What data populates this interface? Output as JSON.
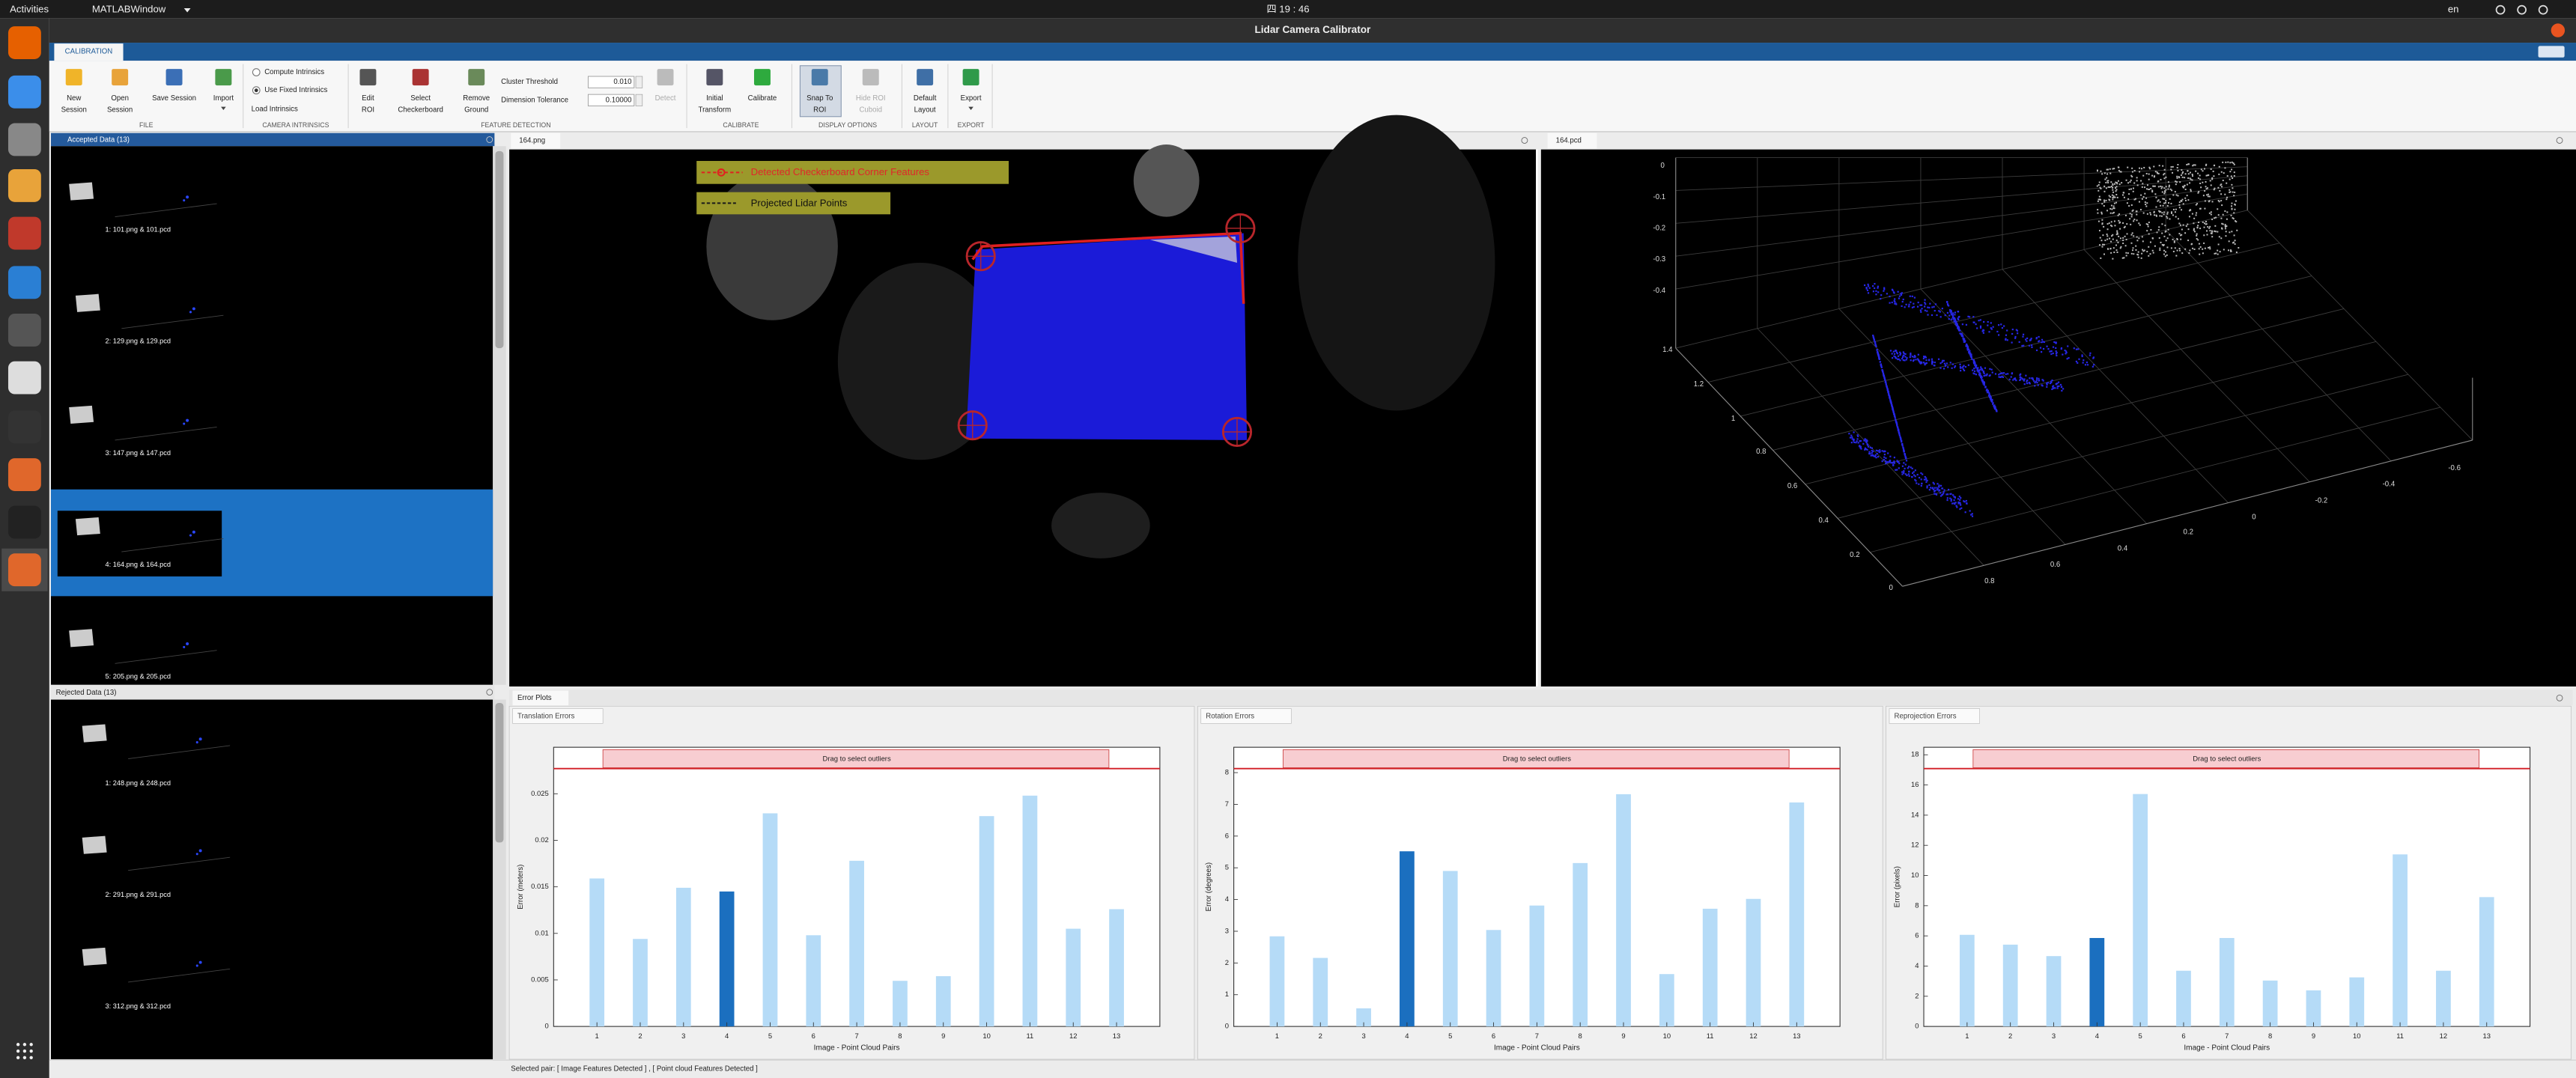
{
  "top_bar": {
    "activities": "Activities",
    "app": "MATLABWindow",
    "clock": "四 19 : 46",
    "language": "en"
  },
  "window_title": "Lidar Camera Calibrator",
  "toolstrip": {
    "tab": "CALIBRATION",
    "buttons": [
      [
        "New",
        "Session"
      ],
      [
        "Open",
        "Session"
      ],
      [
        "Save Session"
      ],
      [
        "Import"
      ],
      [
        "Edit",
        "ROI"
      ],
      [
        "Select",
        "Checkerboard"
      ],
      [
        "Remove",
        "Ground"
      ],
      [
        "Detect"
      ],
      [
        "Initial",
        "Transform"
      ],
      [
        "Calibrate"
      ],
      [
        "Snap To",
        "ROI"
      ],
      [
        "Hide ROI",
        "Cuboid"
      ],
      [
        "Default",
        "Layout"
      ],
      [
        "Export"
      ]
    ],
    "radios": [
      "Compute Intrinsics",
      "Use Fixed Intrinsics"
    ],
    "load_intrinsics": "Load Intrinsics",
    "fields": [
      {
        "label": "Cluster Threshold",
        "value": "0.010"
      },
      {
        "label": "Dimension Tolerance",
        "value": "0.10000"
      }
    ],
    "sections": [
      "FILE",
      "CAMERA INTRINSICS",
      "FEATURE DETECTION",
      "CALIBRATE",
      "DISPLAY OPTIONS",
      "LAYOUT",
      "EXPORT"
    ]
  },
  "accepted": {
    "title": "Accepted Data (13)",
    "items": [
      "1: 101.png & 101.pcd",
      "2: 129.png & 129.pcd",
      "3: 147.png & 147.pcd",
      "4: 164.png & 164.pcd",
      "5: 205.png & 205.pcd"
    ]
  },
  "rejected": {
    "title": "Rejected Data (13)",
    "items": [
      "1: 248.png & 248.pcd",
      "2: 291.png & 291.pcd",
      "3: 312.png & 312.pcd"
    ]
  },
  "image_view": {
    "tab": "164.png",
    "legend": [
      "Detected Checkerboard Corner Features",
      "Projected Lidar Points"
    ]
  },
  "pointcloud_view": {
    "tab": "164.pcd",
    "z_ticks": [
      0,
      -0.1,
      -0.2,
      -0.3,
      -0.4
    ],
    "y_ticks": [
      1.4,
      1.2,
      1,
      0.8,
      0.6,
      0.4,
      0.2,
      0
    ],
    "x_ticks": [
      0.8,
      0.6,
      0.4,
      0.2,
      0,
      -0.2,
      -0.4,
      -0.6
    ]
  },
  "error_plots": {
    "title": "Error Plots"
  },
  "status": "Selected pair: [ Image Features Detected ] , [ Point cloud Features Detected ]",
  "chart_data": [
    {
      "type": "bar",
      "tab": "Translation Errors",
      "banner": "Drag to select outliers",
      "ylabel": "Error (meters)",
      "xlabel": "Image - Point Cloud Pairs",
      "categories": [
        1,
        2,
        3,
        4,
        5,
        6,
        7,
        8,
        9,
        10,
        11,
        12,
        13
      ],
      "xlim": [
        0,
        14
      ],
      "ylim": [
        0,
        0.03
      ],
      "yticks": [
        0,
        0.005,
        0.01,
        0.015,
        0.02,
        0.025
      ],
      "values": [
        0.0159,
        0.0094,
        0.0149,
        0.0145,
        0.0229,
        0.0098,
        0.0178,
        0.0049,
        0.0054,
        0.0226,
        0.0248,
        0.0105,
        0.0126
      ],
      "colors": [
        "#b5dbf7",
        "#b5dbf7",
        "#b5dbf7",
        "#1b6fbf",
        "#b5dbf7",
        "#b5dbf7",
        "#b5dbf7",
        "#b5dbf7",
        "#b5dbf7",
        "#b5dbf7",
        "#b5dbf7",
        "#b5dbf7",
        "#b5dbf7"
      ]
    },
    {
      "type": "bar",
      "tab": "Rotation Errors",
      "banner": "Drag to select outliers",
      "ylabel": "Error (degrees)",
      "xlabel": "Image - Point Cloud Pairs",
      "categories": [
        1,
        2,
        3,
        4,
        5,
        6,
        7,
        8,
        9,
        10,
        11,
        12,
        13
      ],
      "xlim": [
        0,
        14
      ],
      "ylim": [
        0,
        8.8
      ],
      "yticks": [
        0,
        1,
        2,
        3,
        4,
        5,
        6,
        7,
        8
      ],
      "values": [
        2.84,
        2.16,
        0.57,
        5.52,
        4.9,
        3.04,
        3.81,
        5.15,
        7.32,
        1.65,
        3.71,
        4.02,
        7.06
      ],
      "colors": [
        "#b5dbf7",
        "#b5dbf7",
        "#b5dbf7",
        "#1b6fbf",
        "#b5dbf7",
        "#b5dbf7",
        "#b5dbf7",
        "#b5dbf7",
        "#b5dbf7",
        "#b5dbf7",
        "#b5dbf7",
        "#b5dbf7",
        "#b5dbf7"
      ]
    },
    {
      "type": "bar",
      "tab": "Reprojection Errors",
      "banner": "Drag to select outliers",
      "ylabel": "Error (pixels)",
      "xlabel": "Image - Point Cloud Pairs",
      "categories": [
        1,
        2,
        3,
        4,
        5,
        6,
        7,
        8,
        9,
        10,
        11,
        12,
        13
      ],
      "xlim": [
        0,
        14
      ],
      "ylim": [
        0,
        18.5
      ],
      "yticks": [
        0,
        2,
        4,
        6,
        8,
        10,
        12,
        14,
        16,
        18
      ],
      "values": [
        6.07,
        5.42,
        4.66,
        5.86,
        15.4,
        3.69,
        5.86,
        3.04,
        2.39,
        3.25,
        11.4,
        3.69,
        8.57
      ],
      "colors": [
        "#b5dbf7",
        "#b5dbf7",
        "#b5dbf7",
        "#1b6fbf",
        "#b5dbf7",
        "#b5dbf7",
        "#b5dbf7",
        "#b5dbf7",
        "#b5dbf7",
        "#b5dbf7",
        "#b5dbf7",
        "#b5dbf7",
        "#b5dbf7"
      ]
    }
  ]
}
